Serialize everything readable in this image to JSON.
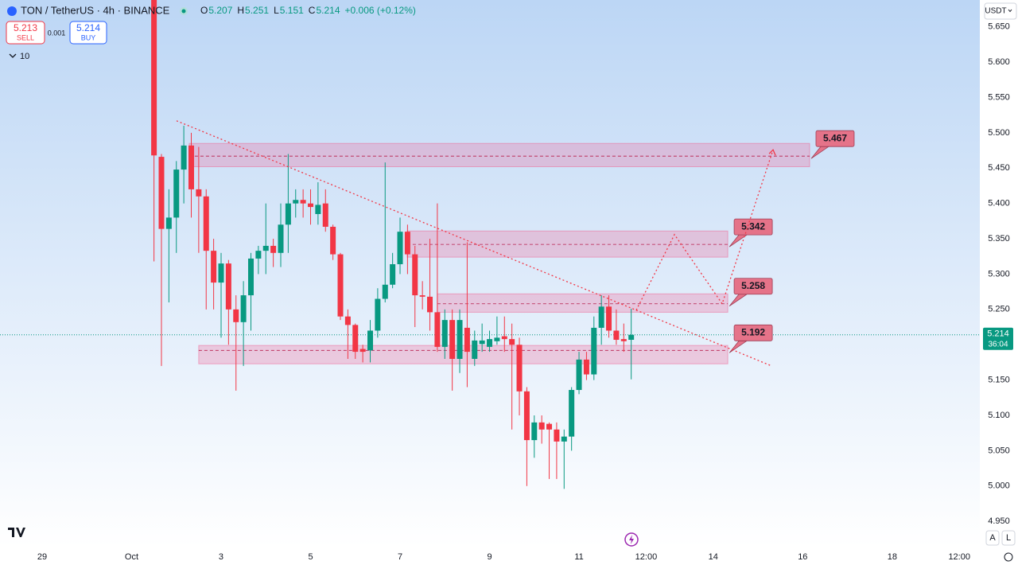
{
  "chart_data": {
    "type": "candlestick",
    "title": "TON / TetherUS · 4h · BINANCE",
    "ohlc_header": [
      {
        "label": "O",
        "value": 5.207
      },
      {
        "label": "H",
        "value": 5.251
      },
      {
        "label": "L",
        "value": 5.151
      },
      {
        "label": "C",
        "value": 5.214
      }
    ],
    "change": "+0.006 (+0.12%)",
    "sell": {
      "price": 5.213,
      "label": "SELL"
    },
    "buy": {
      "price": 5.214,
      "label": "BUY"
    },
    "spread": 0.001,
    "indicators_count": 10,
    "currency": "USDT",
    "last_price": 5.214,
    "countdown": "36:04",
    "scale_buttons": [
      "A",
      "L"
    ],
    "up_color": "#089981",
    "down_color": "#f23645",
    "x": [
      60,
      64,
      68,
      72,
      76,
      80,
      84,
      88,
      92,
      96,
      100,
      104,
      108,
      112,
      116,
      120,
      124,
      128,
      132,
      136,
      140,
      144,
      148,
      152,
      156,
      160,
      164,
      168,
      172,
      176,
      180,
      184,
      188,
      192,
      196,
      200,
      204,
      208,
      212,
      216,
      220,
      224,
      228,
      232,
      236,
      240,
      244,
      248,
      252,
      256,
      260,
      264,
      268,
      272,
      276,
      280,
      284,
      288,
      292,
      296,
      300,
      304,
      308,
      312,
      316
    ],
    "open": [
      5.69,
      5.466,
      5.364,
      5.38,
      5.448,
      5.482,
      5.42,
      5.41,
      5.333,
      5.288,
      5.315,
      5.25,
      5.232,
      5.27,
      5.322,
      5.333,
      5.34,
      5.33,
      5.37,
      5.4,
      5.405,
      5.4,
      5.385,
      5.4,
      5.367,
      5.328,
      5.24,
      5.228,
      5.194,
      5.192,
      5.22,
      5.265,
      5.285,
      5.314,
      5.36,
      5.328,
      5.27,
      5.268,
      5.246,
      5.197,
      5.235,
      5.18,
      5.224,
      5.18,
      5.201,
      5.197,
      5.205,
      5.212,
      5.208,
      5.2,
      5.134,
      5.065,
      5.09,
      5.088,
      5.08,
      5.063,
      5.07,
      5.136,
      5.179,
      5.158,
      5.224,
      5.254,
      5.22,
      5.208,
      5.207
    ],
    "high": [
      5.7,
      5.47,
      5.42,
      5.46,
      5.51,
      5.5,
      5.48,
      5.42,
      5.35,
      5.33,
      5.32,
      5.27,
      5.29,
      5.33,
      5.34,
      5.4,
      5.35,
      5.4,
      5.47,
      5.42,
      5.42,
      5.42,
      5.43,
      5.42,
      5.37,
      5.33,
      5.25,
      5.23,
      5.2,
      5.235,
      5.28,
      5.458,
      5.33,
      5.38,
      5.37,
      5.34,
      5.29,
      5.35,
      5.4,
      5.25,
      5.25,
      5.25,
      5.345,
      5.22,
      5.23,
      5.22,
      5.24,
      5.24,
      5.23,
      5.21,
      5.14,
      5.1,
      5.1,
      5.09,
      5.09,
      5.08,
      5.14,
      5.19,
      5.19,
      5.24,
      5.27,
      5.27,
      5.25,
      5.23,
      5.251
    ],
    "low": [
      5.318,
      5.17,
      5.26,
      5.33,
      5.4,
      5.38,
      5.33,
      5.25,
      5.25,
      5.21,
      5.2,
      5.135,
      5.17,
      5.22,
      5.3,
      5.3,
      5.31,
      5.31,
      5.33,
      5.38,
      5.38,
      5.37,
      5.37,
      5.36,
      5.32,
      5.235,
      5.18,
      5.18,
      5.175,
      5.175,
      5.21,
      5.26,
      5.28,
      5.3,
      5.3,
      5.225,
      5.25,
      5.22,
      5.19,
      5.18,
      5.135,
      5.16,
      5.14,
      5.17,
      5.19,
      5.19,
      5.2,
      5.19,
      5.08,
      5.1,
      5.0,
      5.04,
      5.06,
      5.01,
      5.01,
      4.996,
      5.05,
      5.13,
      5.15,
      5.15,
      5.2,
      5.21,
      5.2,
      5.19,
      5.151
    ],
    "close": [
      5.468,
      5.364,
      5.38,
      5.448,
      5.482,
      5.42,
      5.41,
      5.333,
      5.288,
      5.315,
      5.25,
      5.232,
      5.27,
      5.322,
      5.333,
      5.34,
      5.33,
      5.37,
      5.4,
      5.405,
      5.4,
      5.395,
      5.398,
      5.367,
      5.328,
      5.24,
      5.228,
      5.19,
      5.19,
      5.22,
      5.265,
      5.285,
      5.314,
      5.36,
      5.328,
      5.27,
      5.268,
      5.246,
      5.197,
      5.235,
      5.18,
      5.235,
      5.19,
      5.206,
      5.206,
      5.208,
      5.21,
      5.208,
      5.2,
      5.134,
      5.065,
      5.09,
      5.08,
      5.08,
      5.063,
      5.07,
      5.136,
      5.179,
      5.158,
      5.224,
      5.254,
      5.22,
      5.207,
      5.205,
      5.214
    ],
    "xlim": [
      -22.6,
      503
    ],
    "ylim": [
      4.913,
      5.688
    ],
    "xticks": [
      {
        "value": 0,
        "label": "29"
      },
      {
        "value": 48,
        "label": "Oct"
      },
      {
        "value": 96,
        "label": "3"
      },
      {
        "value": 144,
        "label": "5"
      },
      {
        "value": 192,
        "label": "7"
      },
      {
        "value": 240,
        "label": "9"
      },
      {
        "value": 288,
        "label": "11"
      },
      {
        "value": 324,
        "label": "12:00"
      },
      {
        "value": 360,
        "label": "14"
      },
      {
        "value": 408,
        "label": "16"
      },
      {
        "value": 456,
        "label": "18"
      },
      {
        "value": 492,
        "label": "12:00"
      }
    ],
    "yticks": [
      {
        "value": 4.95,
        "label": "4.950"
      },
      {
        "value": 5.0,
        "label": "5.000"
      },
      {
        "value": 5.05,
        "label": "5.050"
      },
      {
        "value": 5.1,
        "label": "5.100"
      },
      {
        "value": 5.15,
        "label": "5.150"
      },
      {
        "value": 5.2,
        "label": "5.200"
      },
      {
        "value": 5.25,
        "label": "5.250"
      },
      {
        "value": 5.3,
        "label": "5.300"
      },
      {
        "value": 5.35,
        "label": "5.350"
      },
      {
        "value": 5.4,
        "label": "5.400"
      },
      {
        "value": 5.45,
        "label": "5.450"
      },
      {
        "value": 5.5,
        "label": "5.500"
      },
      {
        "value": 5.55,
        "label": "5.550"
      },
      {
        "value": 5.6,
        "label": "5.600"
      },
      {
        "value": 5.65,
        "label": "5.650"
      }
    ],
    "grid": false,
    "zones": [
      {
        "x": [
          78.9,
          411.7
        ],
        "range": [
          5.452,
          5.485
        ],
        "level": 5.467
      },
      {
        "x": [
          195.8,
          367.8
        ],
        "range": [
          5.324,
          5.361
        ],
        "level": 5.342
      },
      {
        "x": [
          212,
          367.8
        ],
        "range": [
          5.246,
          5.272
        ],
        "level": 5.258
      },
      {
        "x": [
          84,
          367.8
        ],
        "range": [
          5.173,
          5.199
        ],
        "level": 5.192
      }
    ],
    "zone_color": "#f06292",
    "trendline": {
      "x": [
        72.1,
        391.3
      ],
      "y": [
        5.517,
        5.17
      ]
    },
    "projection": {
      "x": [
        318.7,
        339.2,
        364.8,
        392.1
      ],
      "y": [
        5.249,
        5.356,
        5.258,
        5.476
      ]
    }
  }
}
